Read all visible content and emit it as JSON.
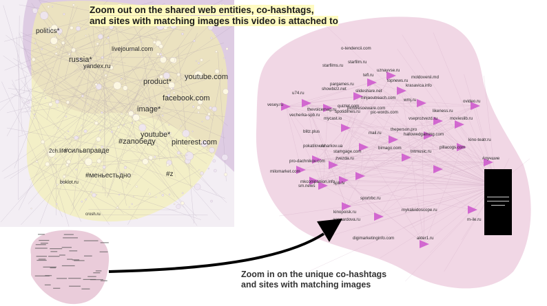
{
  "annotations": {
    "top_line1": "Zoom out on the shared web entities, co-hashtags,",
    "top_line2": "and sites with matching images this video is attached to",
    "bottom_line1": "Zoom in on the unique co-hashtags",
    "bottom_line2": "and sites with matching images"
  },
  "colors": {
    "yellow_cluster": "#f4f0a8",
    "lilac_cluster": "#d9c6df",
    "pink_cluster": "#f0d3e2",
    "node_magenta": "#cc55cc",
    "arrow": "#000000"
  },
  "overview_labels": [
    "politics*",
    "russia*",
    "livejournal.com",
    "yandex.ru",
    "product*",
    "youtube.com",
    "facebook.com",
    "image*",
    "youtube*",
    "#zaпобеду",
    "pinterest.com",
    "#сильвправде",
    "#меньестьдно",
    "#z",
    "2ch.life",
    "boklot.ru",
    "crosh.ru"
  ],
  "zoom_labels": [
    "o-tendencii.com",
    "starfilm.ru",
    "starfilms.ru",
    "uznayvse.ru",
    "tefl.ru",
    "moldovenii.md",
    "pargames.ru",
    "topnews.ru",
    "krasavica.info",
    "u74.ru",
    "showbizz.net",
    "slideshare.net",
    "ninjaoutreach.com",
    "wmj.ru",
    "vesey.ru",
    "quizlet.com",
    "ovideo.ru",
    "thevoicemag.ru",
    "picturesoeware.com",
    "likeness.ru",
    "vecherka-spb.ru",
    "spotidimes.ru",
    "pic-words.com",
    "vseprozvezd.ru",
    "mycast.io",
    "movieslib.ru",
    "blitz.plus",
    "mail.ru",
    "theperson.pro",
    "hallowedgaming.com",
    "kino-teatr.ru",
    "pokatilov.ru",
    "ukharkov.ua",
    "bimago.com",
    "pillacogs.com",
    "stamgage.com",
    "tntmusic.ru",
    "zvezda.ru",
    "#лучшие",
    "pro-dachnikov.com",
    "milomarket.com",
    "mkcompanion.info",
    "sm.news",
    "spb.tv",
    "sportrbc.ru",
    "kinopoisk.ru",
    "annaardova.ru",
    "mykaleidoscope.ru",
    "m-ile.ru",
    "digimarketinginfo.com",
    "akter1.ru"
  ]
}
